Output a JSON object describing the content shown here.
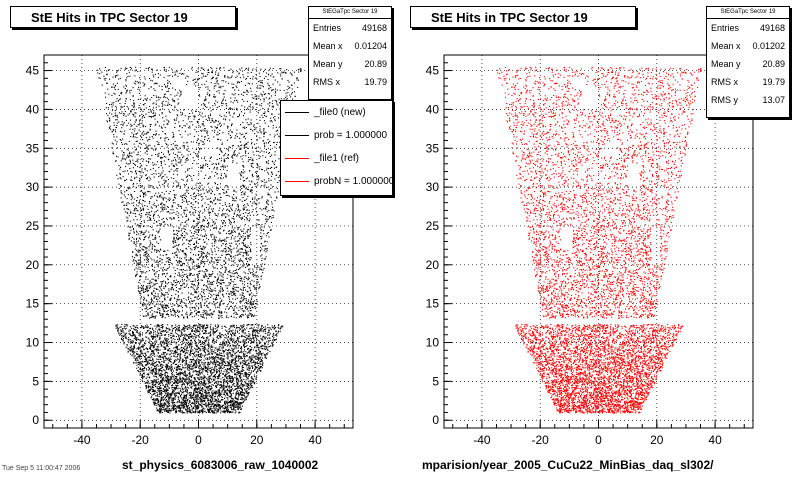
{
  "chart_data": [
    {
      "type": "scatter",
      "title": "StE Hits in TPC Sector 19",
      "xlabel": "st_physics_6083006_raw_1040002",
      "ylabel": "",
      "xlim": [
        -53,
        53
      ],
      "ylim": [
        -1,
        47
      ],
      "x_ticks": [
        "-40",
        "-20",
        "0",
        "20",
        "40"
      ],
      "y_ticks": [
        "0",
        "5",
        "10",
        "15",
        "20",
        "25",
        "30",
        "35",
        "40",
        "45"
      ],
      "grid": true,
      "marker_color": "#000000",
      "stats": {
        "header": "StEGaTpc Sector 19",
        "rows": [
          {
            "label": "Entries",
            "value": "49168"
          },
          {
            "label": "Mean x",
            "value": "0.01204"
          },
          {
            "label": "Mean y",
            "value": "20.89"
          },
          {
            "label": "RMS x",
            "value": "19.79"
          }
        ]
      },
      "legend": [
        {
          "label": "_file0 (new)",
          "color": "#000000"
        },
        {
          "label": "prob = 1.000000",
          "color": "#000000"
        },
        {
          "label": "_file1 (ref)",
          "color": "#ff0000"
        },
        {
          "label": "probN = 1.000000",
          "color": "#ff0000"
        }
      ],
      "legend_position": "top-right",
      "entries": 49168
    },
    {
      "type": "scatter",
      "title": "StE Hits in TPC Sector 19",
      "xlabel": "mparision/year_2005_CuCu22_MinBias_daq_sl302/",
      "ylabel": "",
      "xlim": [
        -53,
        53
      ],
      "ylim": [
        -1,
        47
      ],
      "x_ticks": [
        "-40",
        "-20",
        "0",
        "20",
        "40"
      ],
      "y_ticks": [
        "0",
        "5",
        "10",
        "15",
        "20",
        "25",
        "30",
        "35",
        "40",
        "45"
      ],
      "grid": true,
      "marker_color": "#ff0000",
      "stats": {
        "header": "StEGaTpc Sector 19",
        "rows": [
          {
            "label": "Entries",
            "value": "49168"
          },
          {
            "label": "Mean x",
            "value": "0.01202"
          },
          {
            "label": "Mean y",
            "value": "20.89"
          },
          {
            "label": "RMS x",
            "value": "19.79"
          },
          {
            "label": "RMS y",
            "value": "13.07"
          }
        ]
      },
      "entries": 49168
    }
  ],
  "footer_text": "Tue Sep 5 11:00:47 2006"
}
